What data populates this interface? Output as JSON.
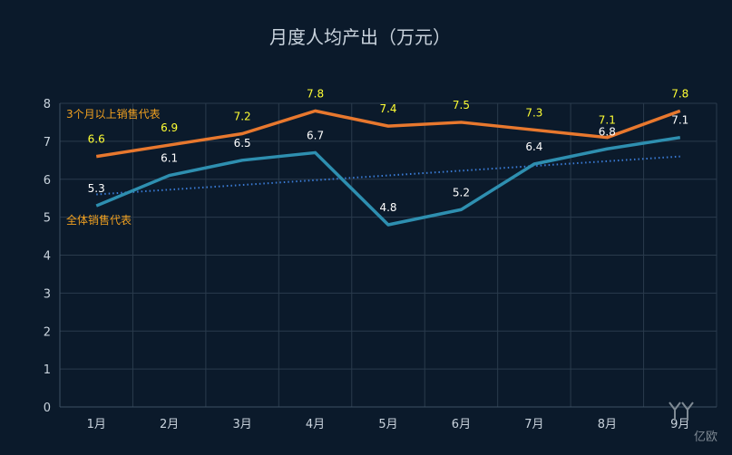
{
  "chart_data": {
    "type": "line",
    "title": "月度人均产出（万元）",
    "categories": [
      "1月",
      "2月",
      "3月",
      "4月",
      "5月",
      "6月",
      "7月",
      "8月",
      "9月"
    ],
    "series": [
      {
        "name": "3个月以上销售代表",
        "color": "#e8782e",
        "values": [
          6.6,
          6.9,
          7.2,
          7.8,
          7.4,
          7.5,
          7.3,
          7.1,
          7.8
        ],
        "label_color": "#ffff33"
      },
      {
        "name": "全体销售代表",
        "color": "#2e8fb0",
        "values": [
          5.3,
          6.1,
          6.5,
          6.7,
          4.8,
          5.2,
          6.4,
          6.8,
          7.1
        ],
        "label_color": "#ffffff"
      }
    ],
    "trendline": {
      "style": "dotted",
      "color": "#3a7bd5",
      "from": 5.6,
      "to": 6.6
    },
    "ylim": [
      0,
      8
    ],
    "yticks": [
      0,
      1,
      2,
      3,
      4,
      5,
      6,
      7,
      8
    ],
    "grid": true,
    "legend": "inline-labels"
  },
  "watermark": {
    "text": "亿欧"
  }
}
